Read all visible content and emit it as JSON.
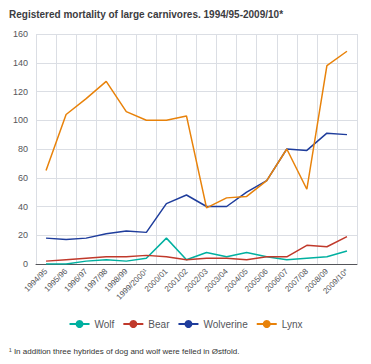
{
  "chart_data": {
    "type": "line",
    "title": "Registered mortality of large carnivores. 1994/95-2009/10*",
    "categories": [
      "1994/95",
      "1995/96",
      "1996/97",
      "1997/98",
      "1998/99",
      "1999/2000¹",
      "2000/01",
      "2001/02",
      "2002/03",
      "2003/04",
      "2004/05",
      "2005/06",
      "2006/07",
      "2007/08",
      "2008/09",
      "2009/10*"
    ],
    "series": [
      {
        "name": "Wolf",
        "color": "#00b0a0",
        "values": [
          0,
          0,
          2,
          3,
          2,
          4,
          18,
          3,
          8,
          5,
          8,
          5,
          3,
          4,
          5,
          9
        ]
      },
      {
        "name": "Bear",
        "color": "#c0392b",
        "values": [
          2,
          3,
          4,
          5,
          5,
          6,
          5,
          3,
          4,
          4,
          3,
          5,
          5,
          13,
          12,
          19
        ]
      },
      {
        "name": "Wolverine",
        "color": "#1f3d9c",
        "values": [
          18,
          17,
          18,
          21,
          23,
          22,
          42,
          48,
          40,
          40,
          50,
          58,
          80,
          79,
          91,
          90
        ]
      },
      {
        "name": "Lynx",
        "color": "#e8820a",
        "values": [
          65,
          104,
          115,
          127,
          106,
          100,
          100,
          103,
          39,
          46,
          47,
          58,
          80,
          52,
          138,
          148
        ]
      }
    ],
    "ylim": [
      0,
      160
    ],
    "yticks": [
      0,
      20,
      40,
      60,
      80,
      100,
      120,
      140,
      160
    ],
    "grid": true,
    "legend": "bottom",
    "annotations": [
      "¹ In addition three hybrides of dog and wolf were felled in Østfold."
    ]
  }
}
